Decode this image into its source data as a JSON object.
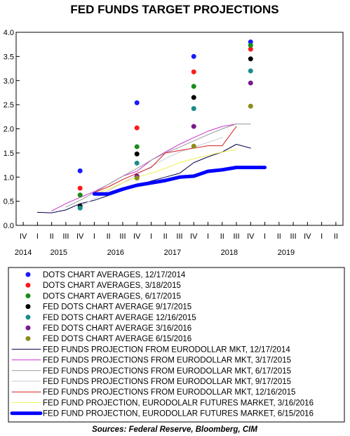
{
  "chart_data": {
    "type": "line",
    "title": "FED FUNDS TARGET PROJECTIONS",
    "source": "Sources: Federal Reserve, Bloomberg, CIM",
    "ylim": [
      0,
      4
    ],
    "y_ticks": [
      "0.0",
      "0.5",
      "1.0",
      "1.5",
      "2.0",
      "2.5",
      "3.0",
      "3.5",
      "4.0"
    ],
    "x_quarter_labels": [
      "IV",
      "I",
      "II",
      "III",
      "IV",
      "I",
      "II",
      "III",
      "IV",
      "I",
      "II",
      "III",
      "IV",
      "I",
      "II",
      "III",
      "IV",
      "I",
      "II",
      "III",
      "IV",
      "I",
      "II"
    ],
    "x_year_labels": [
      "2014",
      "2015",
      "2016",
      "2017",
      "2018",
      "2019"
    ],
    "grid": false,
    "legend_placement": "bottom",
    "dot_series": [
      {
        "name": "DOTS CHART AVERAGES, 12/17/2014",
        "color": "#1a1aff",
        "points": [
          [
            4,
            1.13
          ],
          [
            8,
            2.54
          ],
          [
            12,
            3.5
          ],
          [
            16,
            3.8
          ]
        ]
      },
      {
        "name": "DOTS CHART AVERAGES, 3/18/2015",
        "color": "#ff1a1a",
        "points": [
          [
            4,
            0.77
          ],
          [
            8,
            2.02
          ],
          [
            12,
            3.18
          ],
          [
            16,
            3.65
          ]
        ]
      },
      {
        "name": "DOTS CHART AVERAGES, 6/17/2015",
        "color": "#1a8c1a",
        "points": [
          [
            4,
            0.63
          ],
          [
            8,
            1.63
          ],
          [
            12,
            2.88
          ],
          [
            16,
            3.73
          ]
        ]
      },
      {
        "name": "FED DOTS CHART AVERAGE 9/17/2015",
        "color": "#000000",
        "points": [
          [
            4,
            0.4
          ],
          [
            8,
            1.48
          ],
          [
            12,
            2.65
          ],
          [
            16,
            3.45
          ]
        ]
      },
      {
        "name": "FED DOTS CHART AVERAGE 12/16/2015",
        "color": "#1a8c8c",
        "points": [
          [
            4,
            0.36
          ],
          [
            8,
            1.29
          ],
          [
            12,
            2.42
          ],
          [
            16,
            3.2
          ]
        ]
      },
      {
        "name": "FED DOTS CHART AVERAGE 3/16/2016",
        "color": "#7a1a8c",
        "points": [
          [
            8,
            1.02
          ],
          [
            12,
            2.05
          ],
          [
            16,
            2.95
          ]
        ]
      },
      {
        "name": "FED DOTS CHART AVERAGE 6/15/2016",
        "color": "#8c8c1a",
        "points": [
          [
            8,
            0.98
          ],
          [
            12,
            1.64
          ],
          [
            16,
            2.47
          ]
        ]
      }
    ],
    "line_series": [
      {
        "name": "FED FUNDS PROJECTION FROM EURODOLLAR MKT, 12/17/2014",
        "color": "#00004d",
        "width": 1,
        "points": [
          [
            1,
            0.27
          ],
          [
            2,
            0.26
          ],
          [
            3,
            0.32
          ],
          [
            4,
            0.45
          ],
          [
            5,
            0.52
          ],
          [
            6,
            0.62
          ],
          [
            7,
            0.72
          ],
          [
            8,
            0.82
          ],
          [
            9,
            0.92
          ],
          [
            10,
            1.0
          ],
          [
            11,
            1.08
          ],
          [
            12,
            1.3
          ],
          [
            13,
            1.42
          ],
          [
            14,
            1.52
          ],
          [
            15,
            1.68
          ],
          [
            16,
            1.6
          ]
        ]
      },
      {
        "name": "FED FUNDS PROJECTIONS FROM EURODOLLAR MKT, 3/17/2015",
        "color": "#cc33cc",
        "width": 1,
        "points": [
          [
            2,
            0.3
          ],
          [
            3,
            0.45
          ],
          [
            4,
            0.58
          ],
          [
            5,
            0.7
          ],
          [
            6,
            0.85
          ],
          [
            7,
            1.02
          ],
          [
            8,
            1.12
          ],
          [
            9,
            1.35
          ],
          [
            10,
            1.52
          ],
          [
            11,
            1.68
          ],
          [
            12,
            1.82
          ],
          [
            13,
            1.95
          ],
          [
            14,
            2.05
          ],
          [
            15,
            2.1
          ]
        ]
      },
      {
        "name": "FED FUNDS PROJECTIONS FROM EURODOLLAR MKT, 6/17/2015",
        "color": "#999999",
        "width": 1,
        "points": [
          [
            3,
            0.38
          ],
          [
            4,
            0.52
          ],
          [
            5,
            0.68
          ],
          [
            6,
            0.85
          ],
          [
            7,
            1.02
          ],
          [
            8,
            1.18
          ],
          [
            9,
            1.35
          ],
          [
            10,
            1.5
          ],
          [
            11,
            1.62
          ],
          [
            12,
            1.75
          ],
          [
            13,
            1.88
          ],
          [
            14,
            2.0
          ],
          [
            15,
            2.1
          ],
          [
            16,
            2.1
          ]
        ]
      },
      {
        "name": "FED FUNDS PROJECTIONS FROM EURODOLLAR MKT, 9/17/2015",
        "color": "#c8c8d8",
        "width": 1,
        "points": [
          [
            4,
            0.4
          ],
          [
            5,
            0.55
          ],
          [
            6,
            0.72
          ],
          [
            7,
            0.88
          ],
          [
            8,
            1.05
          ],
          [
            9,
            1.22
          ],
          [
            10,
            1.38
          ],
          [
            11,
            1.52
          ],
          [
            12,
            1.62
          ],
          [
            13,
            1.72
          ],
          [
            14,
            1.82
          ]
        ]
      },
      {
        "name": "FED FUNDS PROJECTIONS FROM EURODOLLAR MKT, 12/16/2015",
        "color": "#d42020",
        "width": 1,
        "points": [
          [
            5,
            0.68
          ],
          [
            6,
            0.8
          ],
          [
            7,
            0.95
          ],
          [
            8,
            1.08
          ],
          [
            9,
            1.2
          ],
          [
            10,
            1.5
          ],
          [
            11,
            1.55
          ],
          [
            12,
            1.6
          ],
          [
            13,
            1.65
          ],
          [
            14,
            1.65
          ],
          [
            15,
            2.05
          ]
        ]
      },
      {
        "name": "FED FUND PROJECTION, EURODOLALR FUTURES MARKET, 3/16/2016",
        "color": "#f0f050",
        "width": 1,
        "points": [
          [
            5,
            0.65
          ],
          [
            6,
            0.75
          ],
          [
            7,
            0.88
          ],
          [
            8,
            1.0
          ],
          [
            9,
            1.08
          ],
          [
            10,
            1.18
          ],
          [
            11,
            1.3
          ],
          [
            12,
            1.38
          ],
          [
            13,
            1.45
          ],
          [
            14,
            1.52
          ],
          [
            15,
            1.57
          ]
        ]
      },
      {
        "name": "FED FUND PROJECTION, EURODOLLAR FUTURES MARKET, 6/15/2016",
        "color": "#0000ff",
        "width": 5,
        "points": [
          [
            5,
            0.65
          ],
          [
            6,
            0.65
          ],
          [
            7,
            0.75
          ],
          [
            8,
            0.83
          ],
          [
            9,
            0.88
          ],
          [
            10,
            0.93
          ],
          [
            11,
            1.0
          ],
          [
            12,
            1.02
          ],
          [
            13,
            1.12
          ],
          [
            14,
            1.15
          ],
          [
            15,
            1.2
          ],
          [
            16,
            1.2
          ],
          [
            17,
            1.2
          ]
        ]
      }
    ]
  },
  "legend": [
    "DOTS CHART AVERAGES, 12/17/2014",
    "DOTS CHART AVERAGES, 3/18/2015",
    "DOTS CHART AVERAGES, 6/17/2015",
    "FED DOTS CHART AVERAGE 9/17/2015",
    "FED DOTS CHART AVERAGE 12/16/2015",
    "FED DOTS CHART AVERAGE 3/16/2016",
    "FED DOTS CHART AVERAGE 6/15/2016",
    "FED FUNDS PROJECTION FROM EURODOLLAR MKT, 12/17/2014",
    "FED FUNDS PROJECTIONS FROM EURODOLLAR MKT, 3/17/2015",
    "FED FUNDS PROJECTIONS FROM EURODOLLAR MKT, 6/17/2015",
    "FED FUNDS PROJECTIONS FROM EURODOLLAR MKT, 9/17/2015",
    "FED FUNDS PROJECTIONS FROM EURODOLLAR MKT, 12/16/2015",
    "FED FUND PROJECTION, EURODOLALR FUTURES MARKET, 3/16/2016",
    "FED FUND PROJECTION, EURODOLLAR FUTURES MARKET, 6/15/2016"
  ]
}
